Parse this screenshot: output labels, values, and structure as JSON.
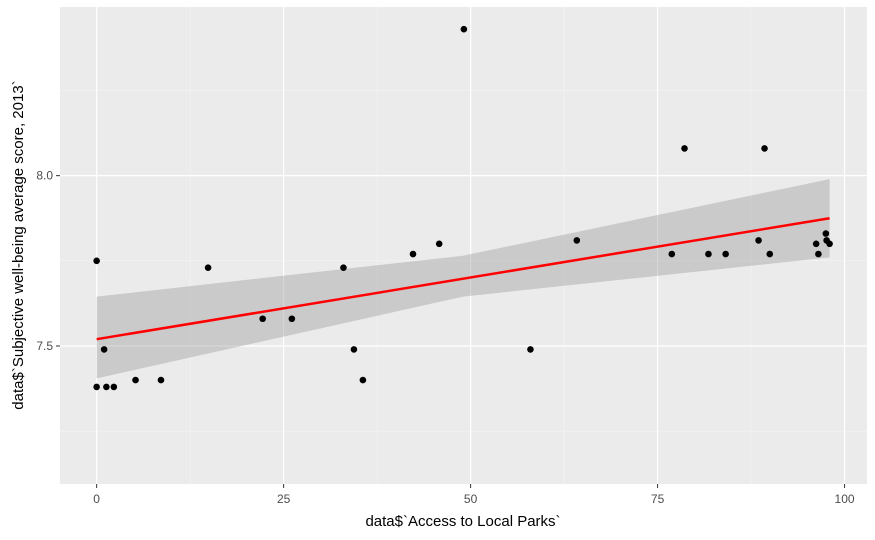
{
  "chart_data": {
    "type": "scatter",
    "title": "",
    "xlabel": "data$`Access to Local Parks`",
    "ylabel": "data$`Subjective well-being average score, 2013`",
    "xlim": [
      -4.9,
      103
    ],
    "ylim": [
      7.095,
      8.495
    ],
    "x_ticks": [
      0,
      25,
      50,
      75,
      100
    ],
    "x_tick_labels": [
      "0",
      "25",
      "50",
      "75",
      "100"
    ],
    "y_ticks": [
      7.5,
      8.0
    ],
    "y_tick_labels": [
      "7.5",
      "8.0"
    ],
    "grid": true,
    "legend": "none",
    "colors": {
      "panel_background": "#ebebeb",
      "grid_major": "#ffffff",
      "points": "#000000",
      "fit_line": "#ff0000",
      "confidence_band": "#cccccc"
    },
    "series": [
      {
        "points": [
          {
            "x": 0,
            "y": 7.75
          },
          {
            "x": 0,
            "y": 7.38
          },
          {
            "x": 1,
            "y": 7.49
          },
          {
            "x": 1.3,
            "y": 7.38
          },
          {
            "x": 2.3,
            "y": 7.38
          },
          {
            "x": 5.2,
            "y": 7.4
          },
          {
            "x": 8.6,
            "y": 7.4
          },
          {
            "x": 14.9,
            "y": 7.73
          },
          {
            "x": 22.2,
            "y": 7.58
          },
          {
            "x": 26.1,
            "y": 7.58
          },
          {
            "x": 33.0,
            "y": 7.73
          },
          {
            "x": 34.4,
            "y": 7.49
          },
          {
            "x": 35.6,
            "y": 7.4
          },
          {
            "x": 42.3,
            "y": 7.77
          },
          {
            "x": 45.8,
            "y": 7.8
          },
          {
            "x": 49.1,
            "y": 8.43
          },
          {
            "x": 58.0,
            "y": 7.49
          },
          {
            "x": 64.2,
            "y": 7.81
          },
          {
            "x": 76.9,
            "y": 7.77
          },
          {
            "x": 78.6,
            "y": 8.08
          },
          {
            "x": 81.8,
            "y": 7.77
          },
          {
            "x": 84.1,
            "y": 7.77
          },
          {
            "x": 88.5,
            "y": 7.81
          },
          {
            "x": 89.3,
            "y": 8.08
          },
          {
            "x": 90.0,
            "y": 7.77
          },
          {
            "x": 96.2,
            "y": 7.8
          },
          {
            "x": 96.5,
            "y": 7.77
          },
          {
            "x": 97.5,
            "y": 7.83
          },
          {
            "x": 97.6,
            "y": 7.81
          },
          {
            "x": 98.0,
            "y": 7.8
          }
        ]
      }
    ],
    "fit": {
      "type": "linear",
      "x_range": [
        0,
        98
      ],
      "y_start": 7.52,
      "y_end": 7.875,
      "band_lower": [
        {
          "x": 0,
          "y": 7.405
        },
        {
          "x": 49,
          "y": 7.645
        },
        {
          "x": 98,
          "y": 7.76
        }
      ],
      "band_upper": [
        {
          "x": 0,
          "y": 7.645
        },
        {
          "x": 49,
          "y": 7.765
        },
        {
          "x": 98,
          "y": 7.99
        }
      ]
    }
  }
}
